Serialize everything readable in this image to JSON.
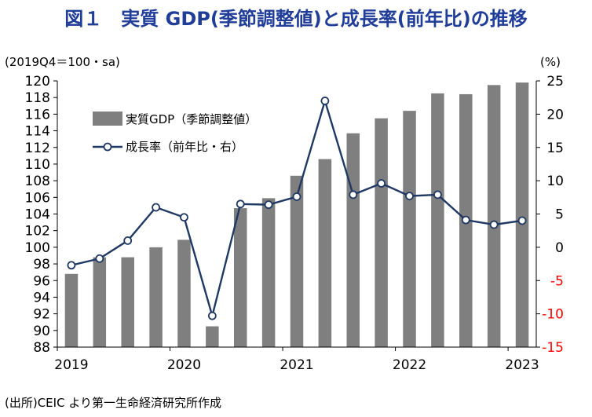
{
  "title": "図１　実質 GDP(季節調整値)と成長率(前年比)の推移",
  "source": "(出所)CEIC より第一生命経済研究所作成",
  "colors": {
    "title": "#1f3d99",
    "bar": "#7f7f7f",
    "line": "#1f3864",
    "marker_fill": "#ffffff",
    "right_axis_negative": "#ff0000"
  },
  "chart_data": {
    "type": "bar+line",
    "left_unit": "(2019Q4＝100・sa)",
    "right_unit": "(%)",
    "x_labels": [
      "2019",
      "2020",
      "2021",
      "2022",
      "2023"
    ],
    "quarters": [
      "2019Q1",
      "2019Q2",
      "2019Q3",
      "2019Q4",
      "2020Q1",
      "2020Q2",
      "2020Q3",
      "2020Q4",
      "2021Q1",
      "2021Q2",
      "2021Q3",
      "2021Q4",
      "2022Q1",
      "2022Q2",
      "2022Q3",
      "2022Q4",
      "2023Q1"
    ],
    "left_axis": {
      "min": 88,
      "max": 120,
      "step": 2,
      "ticks": [
        "88",
        "90",
        "92",
        "94",
        "96",
        "98",
        "100",
        "102",
        "104",
        "106",
        "108",
        "110",
        "112",
        "114",
        "116",
        "118",
        "120"
      ]
    },
    "right_axis": {
      "min": -15,
      "max": 25,
      "step": 5,
      "ticks": [
        "-15",
        "-10",
        "-5",
        "0",
        "5",
        "10",
        "15",
        "20",
        "25"
      ]
    },
    "grid": false,
    "legend_position": "top-left",
    "series": [
      {
        "name": "実質GDP（季節調整値）",
        "type": "bar",
        "axis": "left",
        "values": [
          96.8,
          98.8,
          98.8,
          100.0,
          100.9,
          90.5,
          104.7,
          105.9,
          108.6,
          110.6,
          113.7,
          115.5,
          116.4,
          118.5,
          118.4,
          119.5,
          119.8
        ]
      },
      {
        "name": "成長率（前年比・右）",
        "type": "line",
        "axis": "right",
        "values": [
          -2.7,
          -1.7,
          1.0,
          6.0,
          4.5,
          -10.3,
          6.5,
          6.4,
          7.6,
          22.0,
          7.9,
          9.6,
          7.7,
          7.9,
          4.1,
          3.4,
          4.0
        ]
      }
    ]
  }
}
